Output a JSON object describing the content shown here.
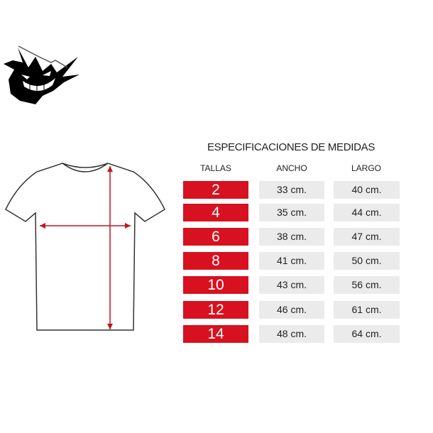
{
  "title": "ESPECIFICACIONES DE MEDIDAS",
  "headers": {
    "tallas": "TALLAS",
    "ancho": "ANCHO",
    "largo": "LARGO"
  },
  "rows": [
    {
      "talla": "2",
      "ancho": "33 cm.",
      "largo": "40 cm."
    },
    {
      "talla": "4",
      "ancho": "35 cm.",
      "largo": "44 cm."
    },
    {
      "talla": "6",
      "ancho": "38 cm.",
      "largo": "47 cm."
    },
    {
      "talla": "8",
      "ancho": "41 cm.",
      "largo": "50 cm."
    },
    {
      "talla": "10",
      "ancho": "43 cm.",
      "largo": "56 cm."
    },
    {
      "talla": "12",
      "ancho": "46 cm.",
      "largo": "61 cm."
    },
    {
      "talla": "14",
      "ancho": "48 cm.",
      "largo": "64 cm."
    }
  ],
  "colors": {
    "accent": "#d7111f",
    "cell": "#ebebeb"
  },
  "icons": {
    "logo": "ghost-monster-logo",
    "diagram": "tshirt-diagram"
  }
}
